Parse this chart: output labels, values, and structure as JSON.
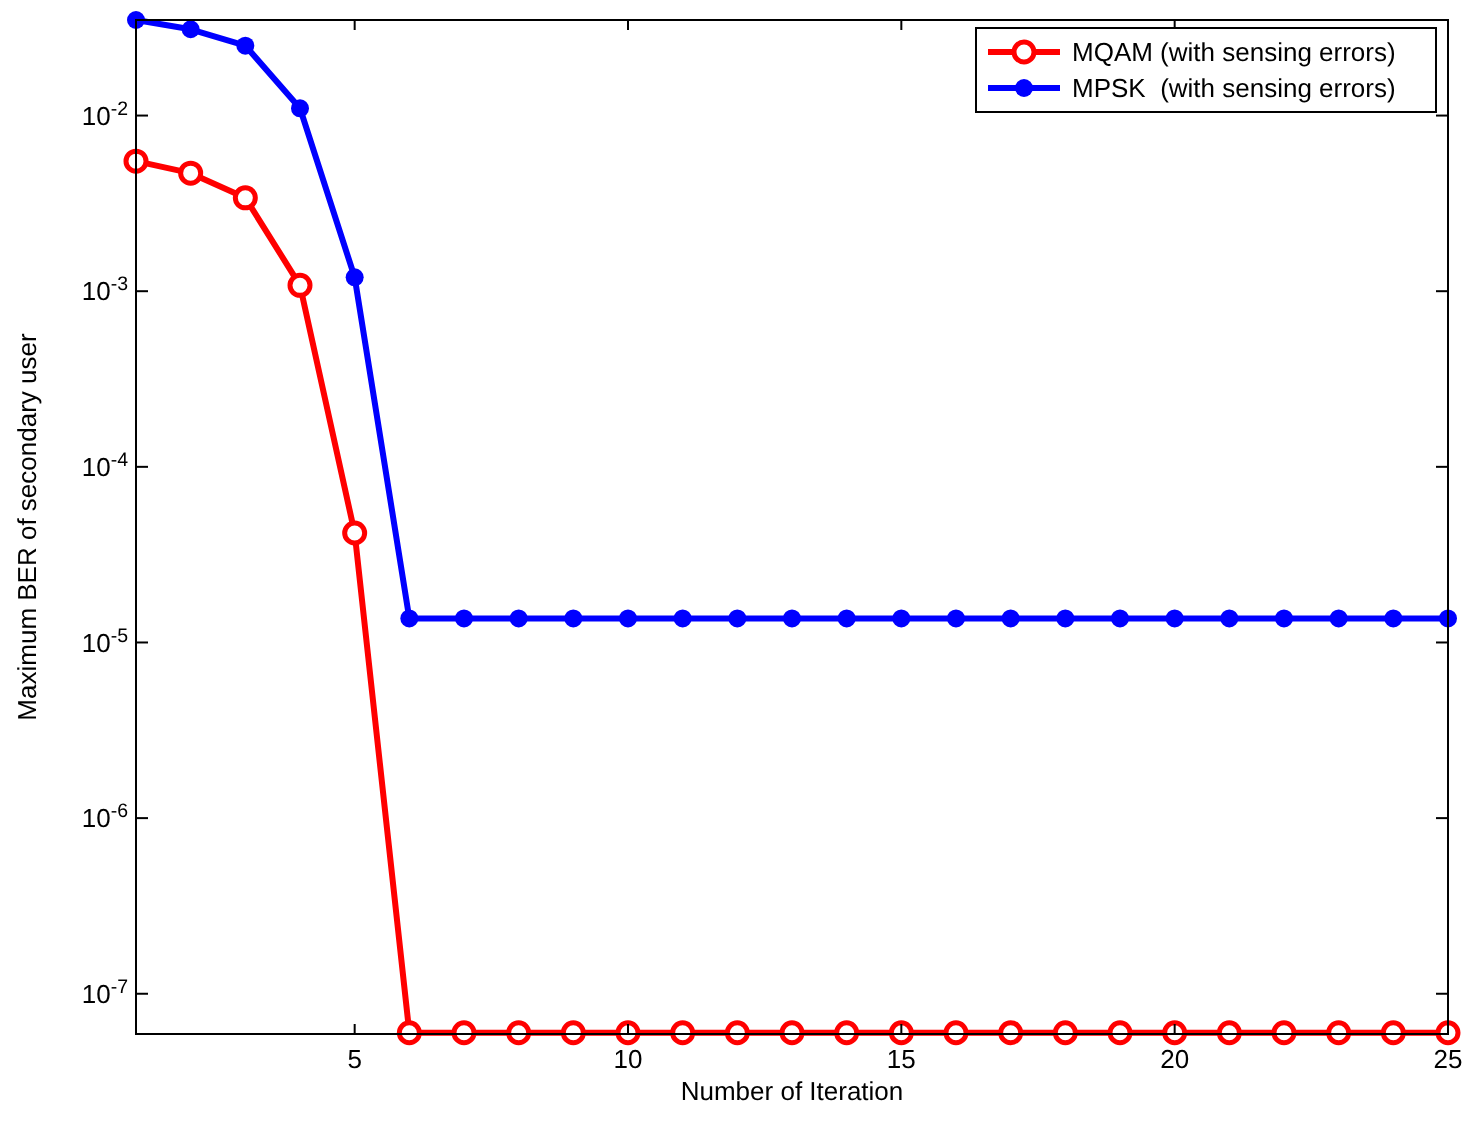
{
  "chart_data": {
    "type": "line",
    "xlabel": "Number of Iteration",
    "ylabel": "Maximum BER of secondary user",
    "x": [
      1,
      2,
      3,
      4,
      5,
      6,
      7,
      8,
      9,
      10,
      11,
      12,
      13,
      14,
      15,
      16,
      17,
      18,
      19,
      20,
      21,
      22,
      23,
      24,
      25
    ],
    "series": [
      {
        "name": "MQAM (with sensing errors)",
        "color": "#ff0000",
        "marker": "circle",
        "values": [
          0.0055,
          0.0047,
          0.0034,
          0.00108,
          4.2e-05,
          6e-08,
          6e-08,
          6e-08,
          6e-08,
          6e-08,
          6e-08,
          6e-08,
          6e-08,
          6e-08,
          6e-08,
          6e-08,
          6e-08,
          6e-08,
          6e-08,
          6e-08,
          6e-08,
          6e-08,
          6e-08,
          6e-08,
          6e-08
        ]
      },
      {
        "name": "MPSK  (with sensing errors)",
        "color": "#0000ff",
        "marker": "filled-circle",
        "values": [
          0.035,
          0.031,
          0.025,
          0.011,
          0.0012,
          1.37e-05,
          1.37e-05,
          1.37e-05,
          1.37e-05,
          1.37e-05,
          1.37e-05,
          1.37e-05,
          1.37e-05,
          1.37e-05,
          1.37e-05,
          1.37e-05,
          1.37e-05,
          1.37e-05,
          1.37e-05,
          1.37e-05,
          1.37e-05,
          1.37e-05,
          1.37e-05,
          1.37e-05,
          1.37e-05
        ]
      }
    ],
    "log": "y",
    "xlim": [
      1,
      25
    ],
    "xticks": [
      5,
      10,
      15,
      20,
      25
    ],
    "ylim": [
      5.9e-08,
      0.035
    ],
    "yticks": [
      {
        "value": 1e-07,
        "label": "10$^{-7}$"
      },
      {
        "value": 1e-06,
        "label": "10$^{-6}$"
      },
      {
        "value": 1e-05,
        "label": "10$^{-5}$"
      },
      {
        "value": 0.0001,
        "label": "10$^{-4}$"
      },
      {
        "value": 0.001,
        "label": "10$^{-3}$"
      },
      {
        "value": 0.01,
        "label": "10$^{-2}$"
      }
    ],
    "grid": false,
    "legend": "top right",
    "line_style": "solid"
  }
}
